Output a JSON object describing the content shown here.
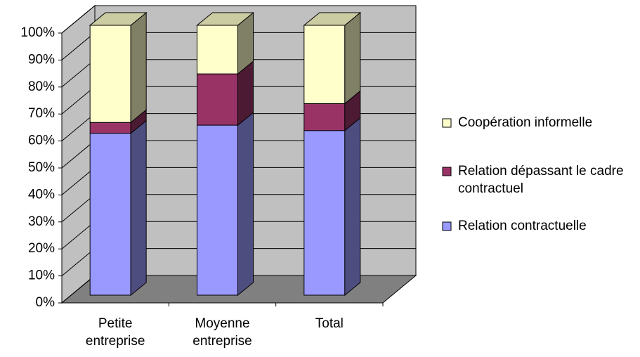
{
  "chart_data": {
    "type": "bar",
    "stacked": true,
    "categories": [
      "Petite entreprise",
      "Moyenne entreprise",
      "Total"
    ],
    "series": [
      {
        "name": "Relation contractuelle",
        "color": "#9999ff",
        "values": [
          60,
          63,
          61
        ]
      },
      {
        "name": "Relation dépassant le cadre contractuel",
        "color": "#993366",
        "values": [
          4,
          19,
          10
        ]
      },
      {
        "name": "Coopération informelle",
        "color": "#ffffcc",
        "values": [
          36,
          18,
          29
        ]
      }
    ],
    "ylim": [
      0,
      100
    ],
    "yticks": [
      {
        "value": 0,
        "label": "0%"
      },
      {
        "value": 10,
        "label": "10%"
      },
      {
        "value": 20,
        "label": "20%"
      },
      {
        "value": 30,
        "label": "30%"
      },
      {
        "value": 40,
        "label": "40%"
      },
      {
        "value": 50,
        "label": "50%"
      },
      {
        "value": 60,
        "label": "60%"
      },
      {
        "value": 70,
        "label": "70%"
      },
      {
        "value": 80,
        "label": "80%"
      },
      {
        "value": 90,
        "label": "90%"
      },
      {
        "value": 100,
        "label": "100%"
      }
    ],
    "grid": true,
    "legend": "right"
  }
}
